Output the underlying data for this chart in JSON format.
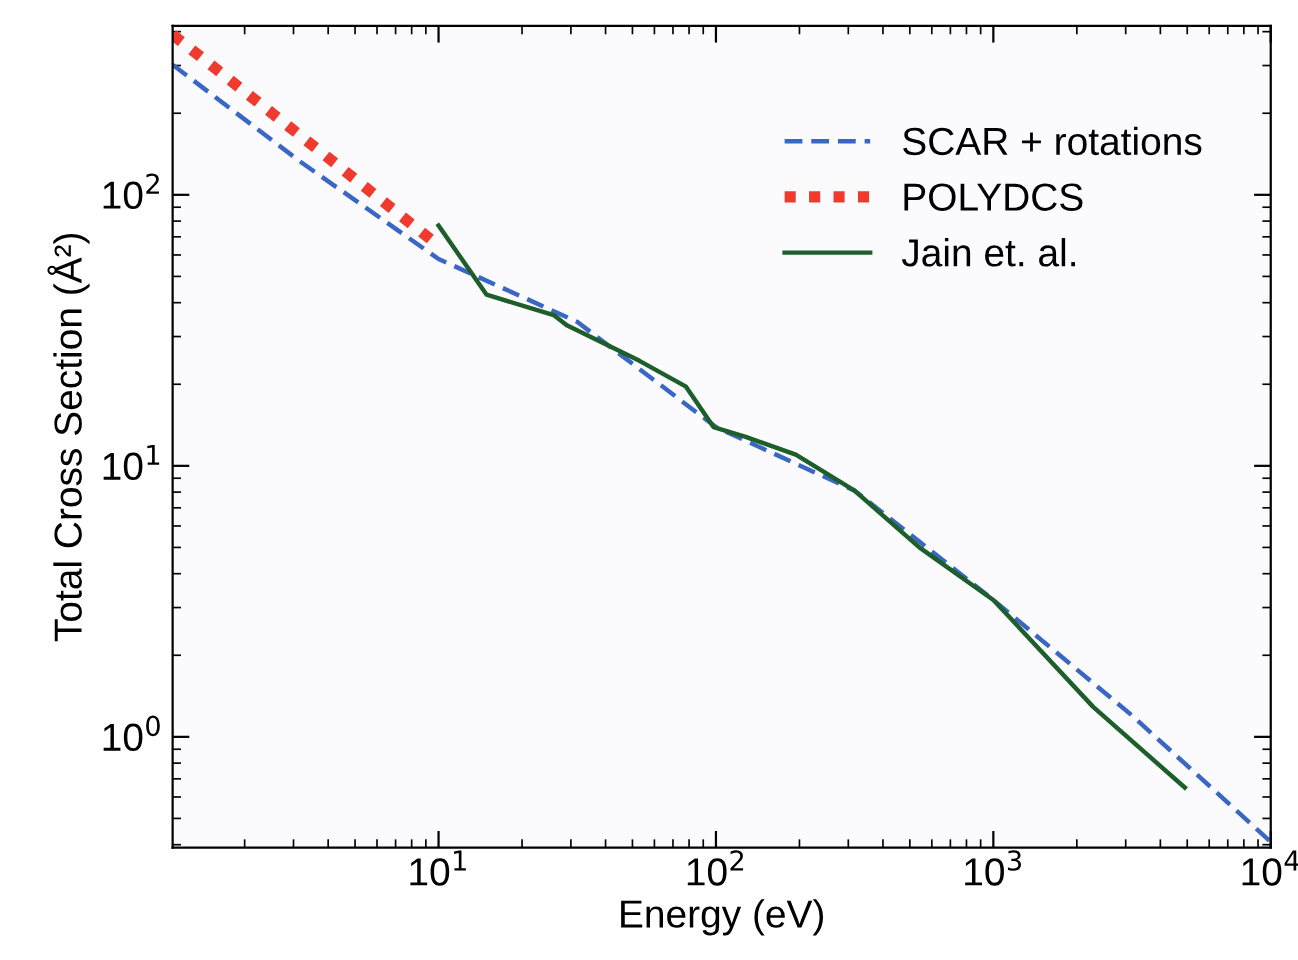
{
  "chart_data": {
    "type": "line",
    "xlabel": "Energy (eV)",
    "ylabel": "Total Cross Section (Å²)",
    "log": "xy",
    "legend": "top right",
    "grid": false,
    "xlim": [
      1.1,
      10000
    ],
    "ylim": [
      0.39,
      420
    ],
    "xticks": [
      {
        "value": 10,
        "label": "10$^{1}$"
      },
      {
        "value": 100,
        "label": "10$^{2}$"
      },
      {
        "value": 1000,
        "label": "10$^{3}$"
      },
      {
        "value": 10000,
        "label": "10$^{4}$"
      }
    ],
    "yticks": [
      {
        "value": 1,
        "label": "10$^{0}$"
      },
      {
        "value": 10,
        "label": "10$^{1}$"
      },
      {
        "value": 100,
        "label": "10$^{2}$"
      }
    ],
    "series": [
      {
        "name": "SCAR + rotations",
        "color": "#3a66c4",
        "line_style": "dashed",
        "x": [
          1.1,
          3.16,
          10,
          31.6,
          100,
          316,
          1000,
          3160,
          10000
        ],
        "values": [
          302,
          133,
          58,
          34,
          13.9,
          8.1,
          3.2,
          1.2,
          0.41
        ]
      },
      {
        "name": "POLYDCS",
        "color": "#f03a2e",
        "line_style": "dotted",
        "x": [
          1.1,
          3.16,
          10
        ],
        "values": [
          390,
          166,
          65
        ]
      },
      {
        "name": "Jain et. al.",
        "color": "#1e5e2a",
        "line_style": "solid",
        "x": [
          10,
          14.9,
          26,
          29,
          53,
          78,
          98,
          128,
          194,
          316,
          541,
          1000,
          2290,
          4900
        ],
        "values": [
          77,
          42.8,
          36,
          33,
          24.4,
          19.6,
          13.9,
          12.8,
          11,
          8.1,
          5.0,
          3.2,
          1.29,
          0.65
        ]
      }
    ]
  }
}
